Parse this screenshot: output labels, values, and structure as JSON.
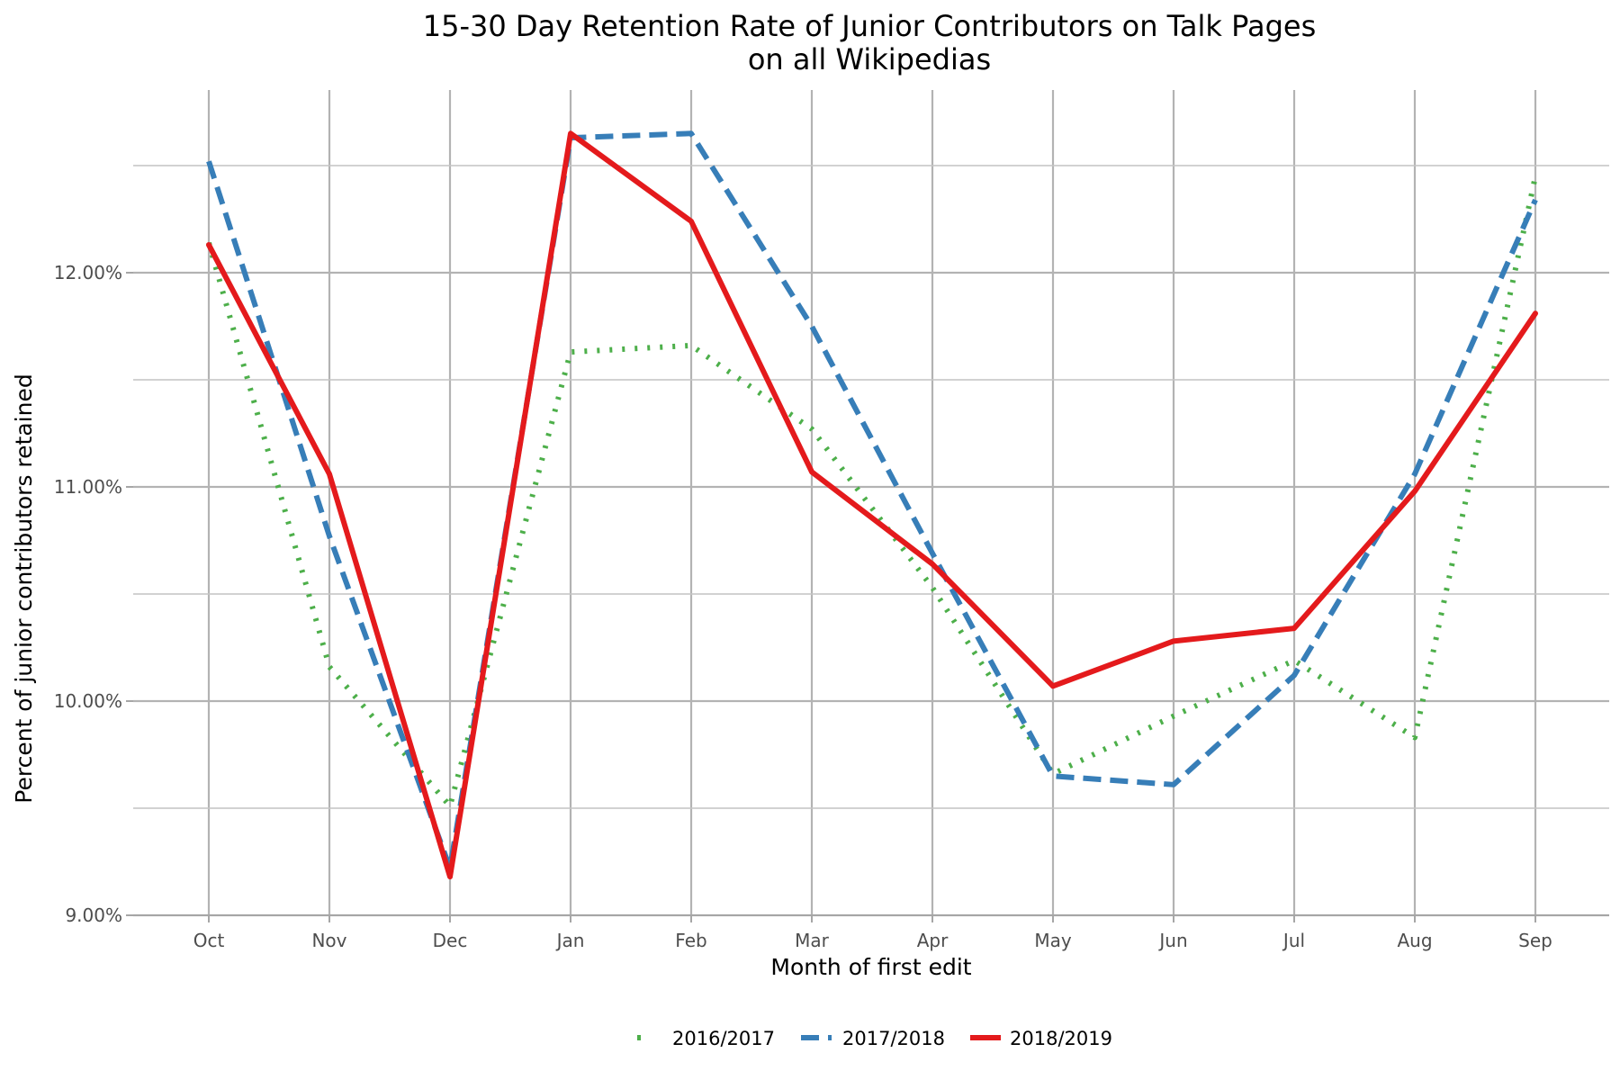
{
  "chart_data": {
    "type": "line",
    "title": "15-30 Day Retention Rate of Junior Contributors on Talk Pages",
    "subtitle": "on all Wikipedias",
    "xlabel": "Month of first edit",
    "ylabel": "Percent of junior contributors retained",
    "categories": [
      "Oct",
      "Nov",
      "Dec",
      "Jan",
      "Feb",
      "Mar",
      "Apr",
      "May",
      "Jun",
      "Jul",
      "Aug",
      "Sep"
    ],
    "ylim": [
      9.0,
      12.5
    ],
    "yticks": [
      9.0,
      10.0,
      11.0,
      12.0
    ],
    "ytick_labels": [
      "9.00%",
      "10.00%",
      "11.00%",
      "12.00%"
    ],
    "grid": true,
    "legend_position": "bottom",
    "series": [
      {
        "name": "2016/2017",
        "color": "#4daf4a",
        "dash": "dotted",
        "values": [
          12.14,
          10.16,
          9.51,
          11.63,
          11.66,
          11.27,
          10.53,
          9.66,
          9.93,
          10.19,
          9.83,
          12.45
        ]
      },
      {
        "name": "2017/2018",
        "color": "#377eb8",
        "dash": "dashed",
        "values": [
          12.52,
          10.77,
          9.22,
          12.63,
          12.65,
          11.75,
          10.69,
          9.65,
          9.61,
          10.12,
          11.06,
          12.34
        ]
      },
      {
        "name": "2018/2019",
        "color": "#e41a1c",
        "dash": "solid",
        "values": [
          12.13,
          11.06,
          9.18,
          12.65,
          12.24,
          11.07,
          10.64,
          10.07,
          10.28,
          10.34,
          10.98,
          11.81
        ]
      }
    ]
  }
}
